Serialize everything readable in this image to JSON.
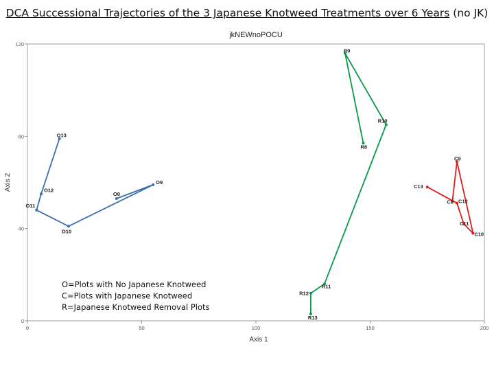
{
  "slide": {
    "title_main": "DCA Successional Trajectories of the 3 Japanese Knotweed Treatments over 6 Years",
    "title_suffix": "(no JK)"
  },
  "chart_data": {
    "type": "scatter",
    "title": "jkNEWnoPOCU",
    "xlabel": "Axis 1",
    "ylabel": "Axis 2",
    "xlim": [
      0,
      200
    ],
    "ylim": [
      0,
      120
    ],
    "xticks": [
      0,
      50,
      100,
      150,
      200
    ],
    "yticks": [
      0,
      40,
      80,
      120
    ],
    "colors": {
      "O": "#3a6fb0",
      "C": "#dd1c1c",
      "R": "#0a9a46"
    },
    "legend_lines": [
      "O=Plots with No Japanese Knotweed",
      "C=Plots with Japanese Knotweed",
      "R=Japanese Knotweed Removal Plots"
    ],
    "series": [
      {
        "points": [
          {
            "label": "O8",
            "x": 39,
            "y": 53
          },
          {
            "label": "O9",
            "x": 55,
            "y": 59
          },
          {
            "label": "O10",
            "x": 18,
            "y": 41
          },
          {
            "label": "O11",
            "x": 4,
            "y": 48
          },
          {
            "label": "O12",
            "x": 6,
            "y": 55
          },
          {
            "label": "O13",
            "x": 14,
            "y": 79
          }
        ]
      },
      {
        "points": [
          {
            "label": "C8",
            "x": 186,
            "y": 52
          },
          {
            "label": "C9",
            "x": 188,
            "y": 69
          },
          {
            "label": "C10",
            "x": 195,
            "y": 38
          },
          {
            "label": "C11",
            "x": 191,
            "y": 42
          },
          {
            "label": "C12",
            "x": 188,
            "y": 51
          },
          {
            "label": "C13",
            "x": 175,
            "y": 58
          }
        ]
      },
      {
        "points": [
          {
            "label": "R8",
            "x": 147,
            "y": 77
          },
          {
            "label": "R9",
            "x": 139,
            "y": 116
          },
          {
            "label": "R10",
            "x": 157,
            "y": 85
          },
          {
            "label": "R11",
            "x": 130,
            "y": 16
          },
          {
            "label": "R12",
            "x": 124,
            "y": 12
          },
          {
            "label": "R13",
            "x": 124,
            "y": 3
          }
        ]
      }
    ]
  }
}
